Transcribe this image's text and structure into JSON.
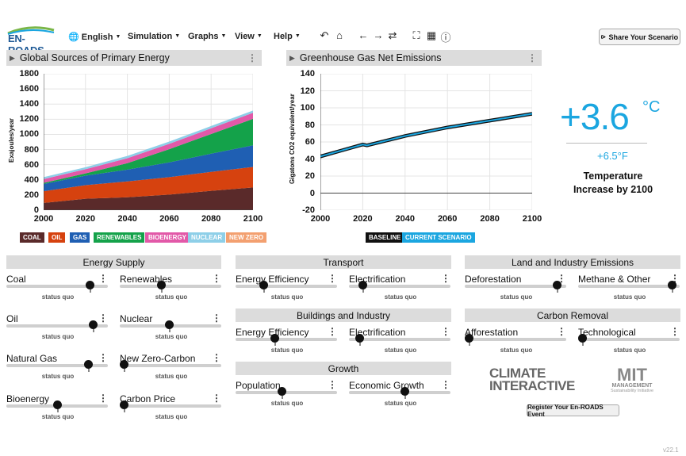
{
  "app": {
    "logo_text": "EN-ROADS",
    "version": "v22.1"
  },
  "menu": {
    "language": "English",
    "simulation": "Simulation",
    "graphs": "Graphs",
    "view": "View",
    "help": "Help"
  },
  "toolbar": {
    "icons": [
      "undo-icon",
      "home-icon",
      "back-icon",
      "forward-icon",
      "swap-icon",
      "fullscreen-icon",
      "table-icon",
      "info-icon"
    ]
  },
  "share": {
    "label": "Share Your Scenario"
  },
  "panel_left": {
    "title": "Global Sources of Primary Energy",
    "ylabel": "Exajoules/year",
    "yticks": [
      "1800",
      "1600",
      "1400",
      "1200",
      "1000",
      "800",
      "600",
      "400",
      "200",
      "0"
    ],
    "xticks": [
      "2000",
      "2020",
      "2040",
      "2060",
      "2080",
      "2100"
    ],
    "legend": [
      {
        "label": "COAL",
        "color": "#5a2a2a"
      },
      {
        "label": "OIL",
        "color": "#d6420f"
      },
      {
        "label": "GAS",
        "color": "#1f5fb3"
      },
      {
        "label": "RENEWABLES",
        "color": "#14a24a"
      },
      {
        "label": "BIOENERGY",
        "color": "#e259a8"
      },
      {
        "label": "NUCLEAR",
        "color": "#8ecfe8"
      },
      {
        "label": "NEW ZERO",
        "color": "#f3a070"
      }
    ]
  },
  "panel_right": {
    "title": "Greenhouse Gas Net Emissions",
    "ylabel": "Gigatons CO2 equivalent/year",
    "yticks": [
      "140",
      "120",
      "100",
      "80",
      "60",
      "40",
      "20",
      "0",
      "-20"
    ],
    "xticks": [
      "2000",
      "2020",
      "2040",
      "2060",
      "2080",
      "2100"
    ],
    "legend": [
      {
        "label": "BASELINE",
        "color": "#111"
      },
      {
        "label": "CURRENT SCENARIO",
        "color": "#1ba6e0"
      }
    ]
  },
  "chart_data": [
    {
      "type": "area",
      "title": "Global Sources of Primary Energy",
      "ylabel": "Exajoules/year",
      "x": [
        2000,
        2020,
        2040,
        2060,
        2080,
        2100
      ],
      "ylim": [
        0,
        1800
      ],
      "series": [
        {
          "name": "COAL",
          "values": [
            95,
            150,
            170,
            205,
            255,
            300
          ]
        },
        {
          "name": "OIL",
          "values": [
            155,
            180,
            210,
            230,
            250,
            270
          ]
        },
        {
          "name": "GAS",
          "values": [
            95,
            125,
            155,
            195,
            240,
            285
          ]
        },
        {
          "name": "RENEWABLES",
          "values": [
            15,
            30,
            85,
            175,
            260,
            350
          ]
        },
        {
          "name": "BIOENERGY",
          "values": [
            50,
            55,
            65,
            70,
            75,
            80
          ]
        },
        {
          "name": "NUCLEAR",
          "values": [
            25,
            27,
            30,
            30,
            30,
            30
          ]
        },
        {
          "name": "NEW ZERO",
          "values": [
            0,
            0,
            0,
            0,
            0,
            0
          ]
        }
      ]
    },
    {
      "type": "line",
      "title": "Greenhouse Gas Net Emissions",
      "ylabel": "Gigatons CO2 equivalent/year",
      "x": [
        2000,
        2010,
        2020,
        2022,
        2040,
        2060,
        2080,
        2100
      ],
      "ylim": [
        -20,
        140
      ],
      "series": [
        {
          "name": "BASELINE",
          "values": [
            43,
            50,
            57,
            56,
            67,
            77,
            85,
            93
          ]
        },
        {
          "name": "CURRENT SCENARIO",
          "values": [
            43,
            50,
            57,
            56,
            67,
            77,
            85,
            93
          ]
        }
      ]
    }
  ],
  "temperature": {
    "celsius": "+3.6",
    "c_unit": "°C",
    "fahrenheit": "+6.5°F",
    "label": "Temperature Increase by 2100"
  },
  "sections": {
    "energy_supply": "Energy Supply",
    "transport": "Transport",
    "buildings": "Buildings and Industry",
    "growth": "Growth",
    "land": "Land and Industry Emissions",
    "carbon": "Carbon Removal"
  },
  "controls": {
    "coal": {
      "label": "Coal",
      "status": "status quo",
      "value": 0.85
    },
    "renewables": {
      "label": "Renewables",
      "status": "status quo",
      "value": 0.4
    },
    "oil": {
      "label": "Oil",
      "status": "status quo",
      "value": 0.88
    },
    "nuclear": {
      "label": "Nuclear",
      "status": "status quo",
      "value": 0.48
    },
    "gas": {
      "label": "Natural Gas",
      "status": "status quo",
      "value": 0.83
    },
    "zero": {
      "label": "New Zero-Carbon",
      "status": "status quo",
      "value": 0.0
    },
    "bio": {
      "label": "Bioenergy",
      "status": "status quo",
      "value": 0.5
    },
    "price": {
      "label": "Carbon Price",
      "status": "status quo",
      "value": 0.0
    },
    "t_eff": {
      "label": "Energy Efficiency",
      "status": "status quo",
      "value": 0.25
    },
    "t_elec": {
      "label": "Electrification",
      "status": "status quo",
      "value": 0.1
    },
    "b_eff": {
      "label": "Energy Efficiency",
      "status": "status quo",
      "value": 0.37
    },
    "b_elec": {
      "label": "Electrification",
      "status": "status quo",
      "value": 0.07
    },
    "pop": {
      "label": "Population",
      "status": "status quo",
      "value": 0.45
    },
    "econ": {
      "label": "Economic Growth",
      "status": "status quo",
      "value": 0.55
    },
    "defor": {
      "label": "Deforestation",
      "status": "status quo",
      "value": 0.94
    },
    "methane": {
      "label": "Methane & Other",
      "status": "status quo",
      "value": 0.96
    },
    "affor": {
      "label": "Afforestation",
      "status": "status quo",
      "value": 0.0
    },
    "techno": {
      "label": "Technological",
      "status": "status quo",
      "value": 0.0
    }
  },
  "logos": {
    "climate": "CLIMATE INTERACTIVE",
    "mit": "MIT",
    "mit_sub": "MANAGEMENT",
    "mit_sub2": "Sustainability Initiative"
  },
  "register": {
    "label": "Register Your En-ROADS Event"
  }
}
